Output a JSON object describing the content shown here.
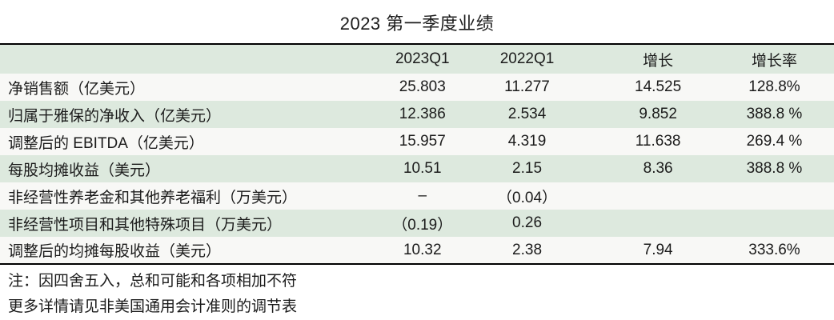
{
  "chart_data": {
    "type": "table",
    "title": "2023 第一季度业绩",
    "columns": [
      "",
      "2023Q1",
      "2022Q1",
      "增长",
      "增长率"
    ],
    "rows": [
      [
        "净销售额（亿美元）",
        "25.803",
        "11.277",
        "14.525",
        "128.8%"
      ],
      [
        "归属于雅保的净收入（亿美元）",
        "12.386",
        "2.534",
        "9.852",
        "388.8 %"
      ],
      [
        "调整后的 EBITDA（亿美元）",
        "15.957",
        "4.319",
        "11.638",
        "269.4 %"
      ],
      [
        "每股均摊收益（美元）",
        "10.51",
        "2.15",
        "8.36",
        "388.8 %"
      ],
      [
        "非经营性养老金和其他养老福利（万美元）",
        "–",
        "（0.04）",
        "",
        ""
      ],
      [
        "非经营性项目和其他特殊项目（万美元）",
        "（0.19）",
        "0.26",
        "",
        ""
      ],
      [
        "调整后的均摊每股收益（美元）",
        "10.32",
        "2.38",
        "7.94",
        "333.6%"
      ]
    ],
    "notes": [
      "注：因四舍五入，总和可能和各项相加不符",
      "更多详情请见非美国通用会计准则的调节表"
    ],
    "layout": {
      "zebra_rows": true,
      "zebra_color_rows": "even (2nd, 4th, 6th)",
      "header_background": "green",
      "top_rule": true,
      "rule_below_last_data_row": true,
      "numeric_alignment": "center",
      "label_alignment": "left"
    }
  },
  "colors": {
    "header_bg": "#dde9de",
    "zebra_bg": "#dde9de",
    "row_bg": "#f8f8f6",
    "text": "#1b1b1b",
    "rule": "#000000"
  }
}
